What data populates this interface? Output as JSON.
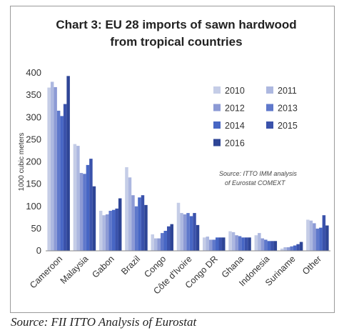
{
  "chart_data": {
    "type": "bar",
    "title_lines": [
      "Chart 3: EU 28 imports of sawn hardwood",
      "from tropical countries"
    ],
    "ylabel": "1000 cubic meters",
    "ylim": [
      0,
      400
    ],
    "yticks": [
      0,
      50,
      100,
      150,
      200,
      250,
      300,
      350,
      400
    ],
    "grid": false,
    "legend_position": "top-right",
    "categories": [
      "Cameroon",
      "Malaysia",
      "Gabon",
      "Brazil",
      "Congo",
      "Côte d'Ivoire",
      "Congo DR",
      "Ghana",
      "Indonesia",
      "Suriname",
      "Other"
    ],
    "series": [
      {
        "name": "2010",
        "color": "#c5cde7",
        "values": [
          367,
          240,
          90,
          188,
          37,
          108,
          30,
          44,
          35,
          5,
          70
        ]
      },
      {
        "name": "2011",
        "color": "#adb8e0",
        "values": [
          380,
          236,
          80,
          165,
          28,
          85,
          32,
          42,
          40,
          8,
          68
        ]
      },
      {
        "name": "2012",
        "color": "#8c9ad5",
        "values": [
          368,
          175,
          82,
          125,
          28,
          82,
          25,
          35,
          28,
          8,
          62
        ]
      },
      {
        "name": "2013",
        "color": "#5f78cb",
        "values": [
          315,
          173,
          90,
          100,
          40,
          85,
          25,
          33,
          25,
          10,
          50
        ]
      },
      {
        "name": "2014",
        "color": "#4766c4",
        "values": [
          303,
          193,
          92,
          120,
          45,
          78,
          30,
          30,
          22,
          12,
          52
        ]
      },
      {
        "name": "2015",
        "color": "#3a52ab",
        "values": [
          330,
          207,
          95,
          125,
          55,
          85,
          30,
          30,
          22,
          15,
          80
        ]
      },
      {
        "name": "2016",
        "color": "#2e4596",
        "values": [
          393,
          145,
          118,
          103,
          60,
          58,
          30,
          30,
          22,
          20,
          57
        ]
      }
    ],
    "annotation_lines": [
      "Source: ITTO IMM analysis",
      "of Eurostat COMEXT"
    ]
  },
  "source_text": "Source: FII ITTO Analysis of Eurostat"
}
